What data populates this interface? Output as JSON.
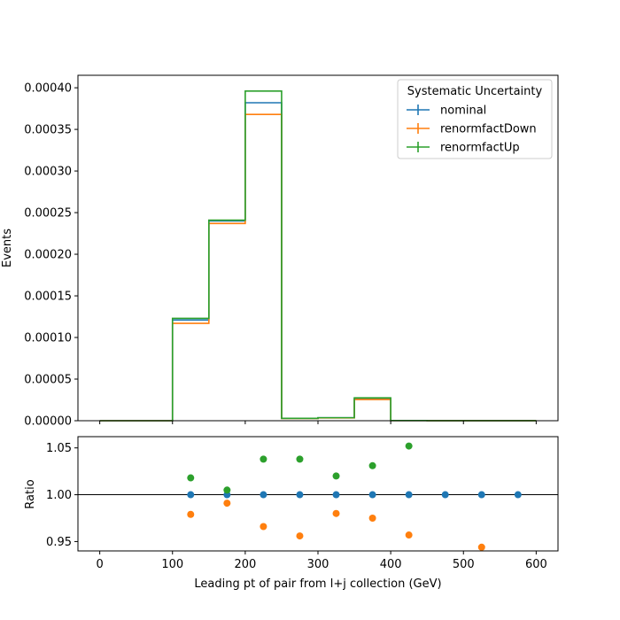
{
  "chart_data": [
    {
      "type": "histogram-step",
      "xlabel": "",
      "ylabel": "Events",
      "xlim": [
        -30,
        630
      ],
      "ylim": [
        0,
        0.000415
      ],
      "grid": false,
      "xticks": [
        0,
        100,
        200,
        300,
        400,
        500,
        600
      ],
      "yticks": [
        0.0,
        5e-05,
        0.0001,
        0.00015,
        0.0002,
        0.00025,
        0.0003,
        0.00035,
        0.0004
      ],
      "ytick_labels": [
        "0.00000",
        "0.00005",
        "0.00010",
        "0.00015",
        "0.00020",
        "0.00025",
        "0.00030",
        "0.00035",
        "0.00040"
      ],
      "bin_edges": [
        0,
        50,
        100,
        150,
        200,
        250,
        300,
        350,
        400,
        450,
        500,
        550,
        600
      ],
      "legend": {
        "title": "Systematic Uncertainty",
        "placement": "top-right"
      },
      "series": [
        {
          "name": "nominal",
          "color": "#1f77b4",
          "values": [
            0,
            0,
            0.000121,
            0.00024,
            0.000382,
            2.8e-06,
            3.5e-06,
            2.65e-05,
            2e-07,
            1e-07,
            1e-07,
            1e-07
          ]
        },
        {
          "name": "renormfactDown",
          "color": "#ff7f0e",
          "values": [
            0,
            0,
            0.000117,
            0.000237,
            0.000368,
            2.7e-06,
            3.4e-06,
            2.55e-05,
            2e-07,
            1e-07,
            1e-07,
            1e-07
          ]
        },
        {
          "name": "renormfactUp",
          "color": "#2ca02c",
          "values": [
            0,
            0,
            0.000123,
            0.000241,
            0.000396,
            2.9e-06,
            3.6e-06,
            2.75e-05,
            2e-07,
            1e-07,
            1e-07,
            1e-07
          ]
        }
      ]
    },
    {
      "type": "scatter",
      "xlabel": "Leading pt of pair from l+j collection (GeV)",
      "ylabel": "Ratio",
      "xlim": [
        -30,
        630
      ],
      "ylim": [
        0.94,
        1.062
      ],
      "grid": false,
      "xticks": [
        0,
        100,
        200,
        300,
        400,
        500,
        600
      ],
      "xtick_labels": [
        "0",
        "100",
        "200",
        "300",
        "400",
        "500",
        "600"
      ],
      "yticks": [
        0.95,
        1.0,
        1.05
      ],
      "ytick_labels": [
        "0.95",
        "1.00",
        "1.05"
      ],
      "reference_line": 1.0,
      "series": [
        {
          "name": "nominal",
          "color": "#1f77b4",
          "x": [
            125,
            175,
            225,
            275,
            325,
            375,
            425,
            475,
            525,
            575
          ],
          "y": [
            1.0,
            1.0,
            1.0,
            1.0,
            1.0,
            1.0,
            1.0,
            1.0,
            1.0,
            1.0
          ]
        },
        {
          "name": "renormfactDown",
          "color": "#ff7f0e",
          "x": [
            125,
            175,
            225,
            275,
            325,
            375,
            425,
            525
          ],
          "y": [
            0.979,
            0.991,
            0.966,
            0.956,
            0.98,
            0.975,
            0.957,
            0.944
          ]
        },
        {
          "name": "renormfactUp",
          "color": "#2ca02c",
          "x": [
            125,
            175,
            225,
            275,
            325,
            375,
            425
          ],
          "y": [
            1.018,
            1.005,
            1.038,
            1.038,
            1.02,
            1.031,
            1.052
          ]
        }
      ]
    }
  ]
}
